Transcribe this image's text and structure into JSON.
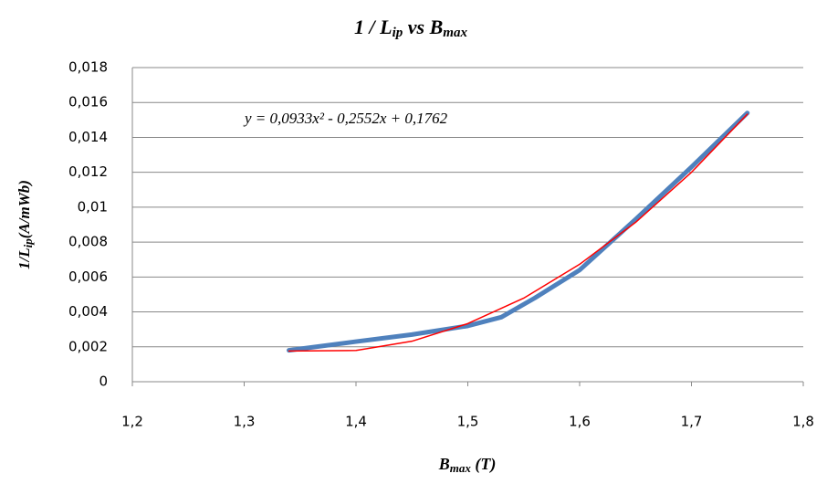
{
  "chart_data": {
    "type": "line",
    "title": [
      "1 / L",
      "ip",
      " vs B",
      "max"
    ],
    "xlabel": [
      "B",
      "max",
      " (T)"
    ],
    "ylabel": [
      "1/L",
      "ip",
      "(A/mWb)"
    ],
    "annotation": "y = 0,0933x² - 0,2552x + 0,1762",
    "series": [
      {
        "color": "#4f81bd",
        "x": [
          1.34,
          1.4,
          1.45,
          1.5,
          1.53,
          1.56,
          1.6,
          1.65,
          1.7,
          1.75
        ],
        "values": [
          0.0018,
          0.0023,
          0.0027,
          0.0032,
          0.0037,
          0.0048,
          0.0064,
          0.0093,
          0.0123,
          0.0154
        ]
      },
      {
        "color": "#ff0000",
        "x": [
          1.34,
          1.4,
          1.45,
          1.5,
          1.55,
          1.6,
          1.65,
          1.7,
          1.75
        ],
        "values": [
          0.00176,
          0.00179,
          0.00232,
          0.00333,
          0.00479,
          0.00673,
          0.00913,
          0.012,
          0.01533
        ]
      }
    ],
    "xlim": [
      1.2,
      1.8
    ],
    "xticks": [
      {
        "value": 1.2,
        "label": "1,2"
      },
      {
        "value": 1.3,
        "label": "1,3"
      },
      {
        "value": 1.4,
        "label": "1,4"
      },
      {
        "value": 1.5,
        "label": "1,5"
      },
      {
        "value": 1.6,
        "label": "1,6"
      },
      {
        "value": 1.7,
        "label": "1,7"
      },
      {
        "value": 1.8,
        "label": "1,8"
      }
    ],
    "ylim": [
      0,
      0.018
    ],
    "yticks": [
      0,
      {
        "value": 0.002,
        "label": "0,002"
      },
      {
        "value": 0.004,
        "label": "0,004"
      },
      {
        "value": 0.006,
        "label": "0,006"
      },
      {
        "value": 0.008,
        "label": "0,008"
      },
      {
        "value": 0.01,
        "label": "0,01"
      },
      {
        "value": 0.012,
        "label": "0,012"
      },
      {
        "value": 0.014,
        "label": "0,014"
      },
      {
        "value": 0.016,
        "label": "0,016"
      },
      {
        "value": 0.018,
        "label": "0,018"
      }
    ],
    "grid": true
  }
}
